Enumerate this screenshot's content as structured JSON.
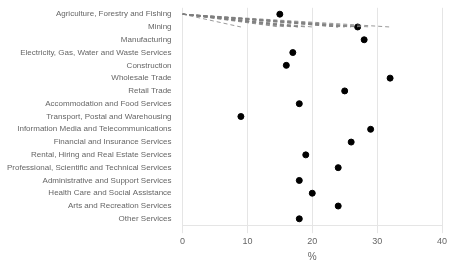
{
  "chart_data": {
    "type": "dot",
    "orientation": "horizontal",
    "categories": [
      "Agriculture, Forestry and Fishing",
      "Mining",
      "Manufacturing",
      "Electricity, Gas, Water and Waste Services",
      "Construction",
      "Wholesale Trade",
      "Retail Trade",
      "Accommodation and Food Services",
      "Transport, Postal and Warehousing",
      "Information Media and Telecommunications",
      "Financial and Insurance Services",
      "Rental, Hiring and Real Estate Services",
      "Professional, Scientific and Technical Services",
      "Administrative and Support Services",
      "Health Care and Social Assistance",
      "Arts and Recreation Services",
      "Other Services"
    ],
    "values": [
      15,
      27,
      28,
      17,
      16,
      32,
      25,
      18,
      9,
      29,
      26,
      19,
      24,
      18,
      20,
      24,
      18
    ],
    "xlim": [
      0,
      40
    ],
    "xticks": [
      0,
      10,
      20,
      30,
      40
    ],
    "xlabel": "%",
    "grid": true,
    "color": "#000000"
  }
}
